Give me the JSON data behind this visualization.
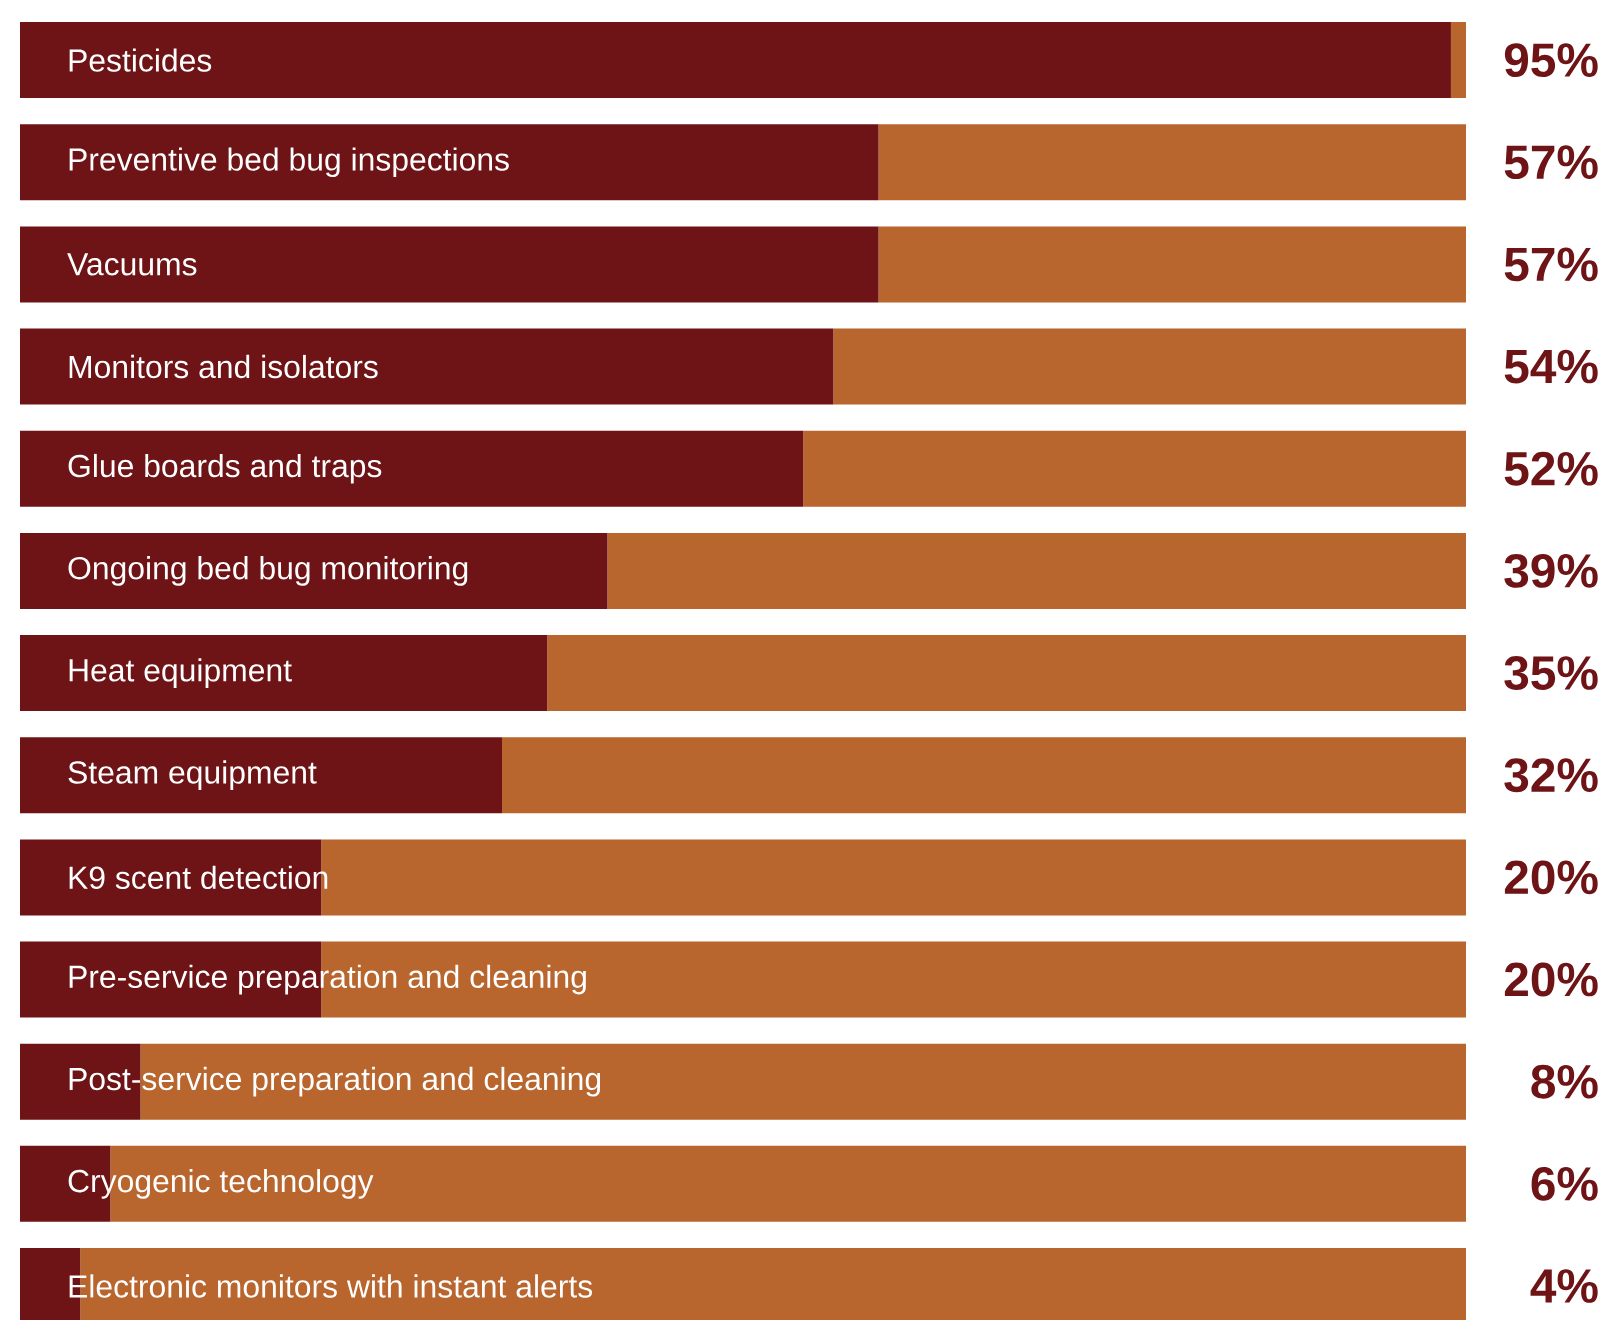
{
  "chart_data": {
    "type": "bar",
    "orientation": "horizontal",
    "stacked": true,
    "tick_labels": false,
    "categories": [
      "Pesticides",
      "Preventive bed bug inspections",
      "Vacuums",
      "Monitors and isolators",
      "Glue boards and traps",
      "Ongoing bed bug monitoring",
      "Heat equipment",
      "Steam equipment",
      "K9 scent detection",
      "Pre-service preparation and cleaning",
      "Post-service preparation and cleaning",
      "Cryogenic technology",
      "Electronic monitors with instant alerts"
    ],
    "series": [
      {
        "color": "#6e1416",
        "values": [
          95,
          57,
          57,
          54,
          52,
          39,
          35,
          32,
          20,
          20,
          8,
          6,
          4
        ],
        "value_labels": [
          "95%",
          "57%",
          "57%",
          "54%",
          "52%",
          "39%",
          "35%",
          "32%",
          "20%",
          "20%",
          "8%",
          "6%",
          "4%"
        ]
      },
      {
        "color": "#b8652e",
        "values": [
          1,
          39,
          39,
          42,
          44,
          57,
          61,
          64,
          76,
          76,
          88,
          90,
          92
        ]
      }
    ]
  }
}
